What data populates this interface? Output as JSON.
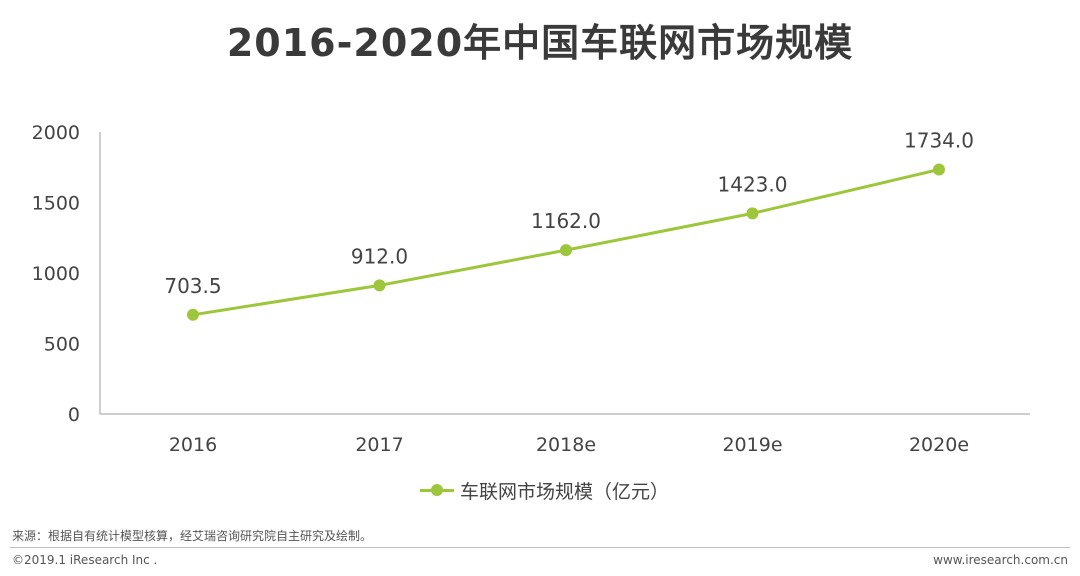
{
  "chart_data": {
    "type": "line",
    "title": "2016-2020年中国车联网市场规模",
    "categories": [
      "2016",
      "2017",
      "2018e",
      "2019e",
      "2020e"
    ],
    "series": [
      {
        "name": "车联网市场规模（亿元）",
        "values": [
          703.5,
          912.0,
          1162.0,
          1423.0,
          1734.0
        ],
        "data_labels": [
          "703.5",
          "912.0",
          "1162.0",
          "1423.0",
          "1734.0"
        ],
        "color": "#9dc63b"
      }
    ],
    "yticks": [
      "0",
      "500",
      "1000",
      "1500",
      "2000"
    ],
    "ylim": [
      0,
      2000
    ],
    "xlabel": "",
    "ylabel": "",
    "grid": false,
    "legend": "bottom-center"
  },
  "footer": {
    "source": "来源：根据自有统计模型核算，经艾瑞咨询研究院自主研究及绘制。",
    "copyright": "©2019.1 iResearch Inc .",
    "website": "www.iresearch.com.cn"
  },
  "colors": {
    "axis": "#bdbdbd",
    "text": "#444444"
  }
}
